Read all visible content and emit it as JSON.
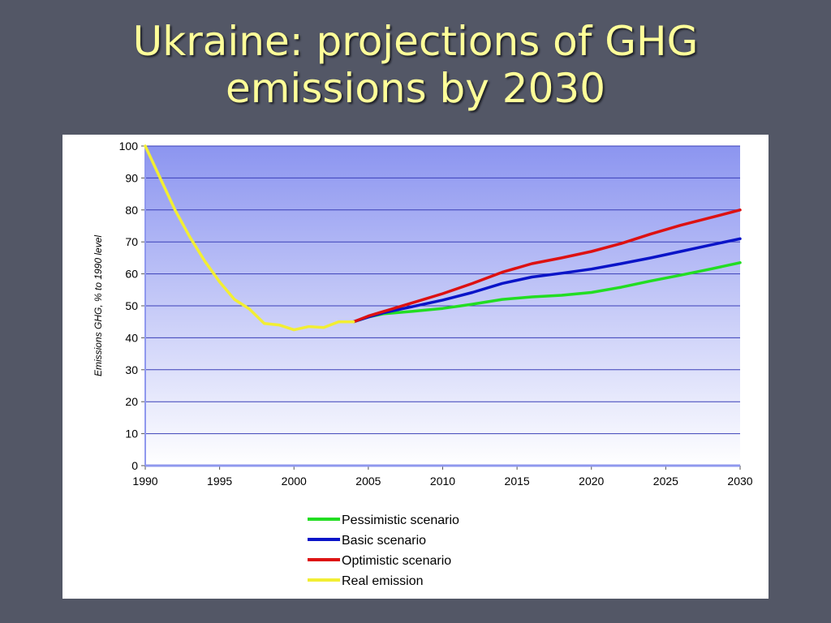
{
  "slide": {
    "title_line1": "Ukraine: projections of GHG",
    "title_line2": "emissions by 2030"
  },
  "colors": {
    "background": "#535766",
    "title": "#ffff99",
    "plot_top": "#8c95f0",
    "plot_bottom": "#ffffff",
    "gridline": "#3a3fb8"
  },
  "chart_data": {
    "type": "line",
    "title": "",
    "xlabel": "",
    "ylabel": "Emissions GHG, % to 1990 level",
    "xlim": [
      1990,
      2030
    ],
    "ylim": [
      0,
      100
    ],
    "x_ticks": [
      1990,
      1995,
      2000,
      2005,
      2010,
      2015,
      2020,
      2025,
      2030
    ],
    "y_ticks": [
      0,
      10,
      20,
      30,
      40,
      50,
      60,
      70,
      80,
      90,
      100
    ],
    "grid": true,
    "legend_position": "bottom-center",
    "series": [
      {
        "name": "Pessimistic scenario",
        "color": "#22dd22",
        "points": [
          [
            2004,
            45
          ],
          [
            2005,
            46.5
          ],
          [
            2006,
            47.5
          ],
          [
            2008,
            48.3
          ],
          [
            2010,
            49.2
          ],
          [
            2012,
            50.5
          ],
          [
            2014,
            52
          ],
          [
            2016,
            52.8
          ],
          [
            2018,
            53.3
          ],
          [
            2020,
            54.2
          ],
          [
            2022,
            55.8
          ],
          [
            2024,
            57.8
          ],
          [
            2026,
            59.6
          ],
          [
            2028,
            61.5
          ],
          [
            2030,
            63.5
          ]
        ]
      },
      {
        "name": "Basic scenario",
        "color": "#0a14c8",
        "points": [
          [
            2004,
            45
          ],
          [
            2005,
            46.5
          ],
          [
            2006,
            47.8
          ],
          [
            2008,
            49.8
          ],
          [
            2010,
            51.8
          ],
          [
            2012,
            54.2
          ],
          [
            2014,
            57
          ],
          [
            2016,
            59
          ],
          [
            2018,
            60.2
          ],
          [
            2020,
            61.5
          ],
          [
            2022,
            63.2
          ],
          [
            2024,
            65
          ],
          [
            2026,
            67
          ],
          [
            2028,
            69
          ],
          [
            2030,
            71
          ]
        ]
      },
      {
        "name": "Optimistic scenario",
        "color": "#dd1111",
        "points": [
          [
            2004,
            45
          ],
          [
            2005,
            46.8
          ],
          [
            2006,
            48.2
          ],
          [
            2008,
            51
          ],
          [
            2010,
            53.8
          ],
          [
            2012,
            57
          ],
          [
            2014,
            60.5
          ],
          [
            2016,
            63.2
          ],
          [
            2018,
            65
          ],
          [
            2020,
            67
          ],
          [
            2022,
            69.5
          ],
          [
            2024,
            72.5
          ],
          [
            2026,
            75.2
          ],
          [
            2028,
            77.6
          ],
          [
            2030,
            80
          ]
        ]
      },
      {
        "name": "Real emission",
        "color": "#f2ee33",
        "points": [
          [
            1990,
            100
          ],
          [
            1991,
            90
          ],
          [
            1992,
            80
          ],
          [
            1993,
            71.5
          ],
          [
            1994,
            64
          ],
          [
            1995,
            57.5
          ],
          [
            1996,
            52
          ],
          [
            1997,
            49
          ],
          [
            1998,
            44.5
          ],
          [
            1999,
            44
          ],
          [
            2000,
            42.5
          ],
          [
            2001,
            43.5
          ],
          [
            2002,
            43.2
          ],
          [
            2003,
            45
          ],
          [
            2004,
            45
          ]
        ]
      }
    ]
  }
}
